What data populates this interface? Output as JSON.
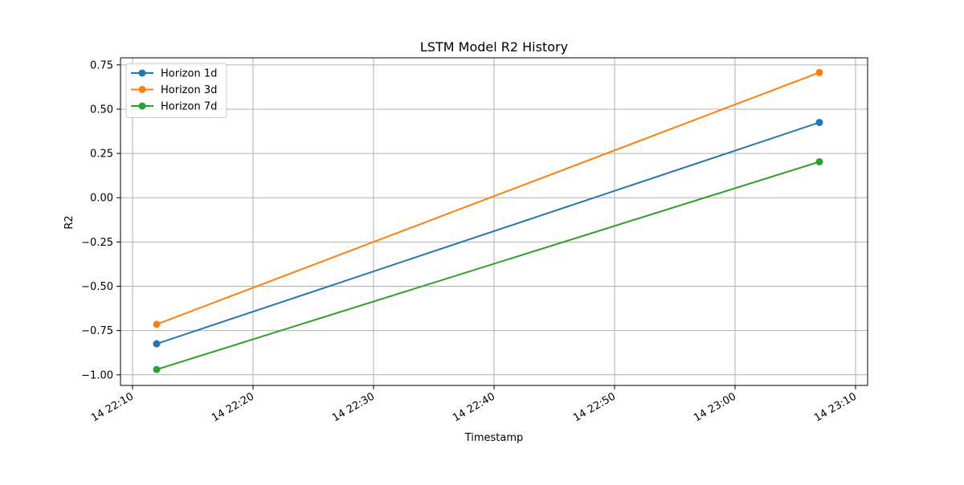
{
  "chart_data": {
    "type": "line",
    "title": "LSTM Model R2 History",
    "xlabel": "Timestamp",
    "ylabel": "R2",
    "x_ticks": [
      "14 22:10",
      "14 22:20",
      "14 22:30",
      "14 22:40",
      "14 22:50",
      "14 23:00",
      "14 23:10"
    ],
    "x": [
      "22:12",
      "23:07"
    ],
    "xlim": [
      "22:09",
      "23:11"
    ],
    "ylim": [
      -1.06,
      0.79
    ],
    "y_ticks": [
      -1.0,
      -0.75,
      -0.5,
      -0.25,
      0.0,
      0.25,
      0.5,
      0.75
    ],
    "y_tick_labels": [
      "−1.00",
      "−0.75",
      "−0.50",
      "−0.25",
      "0.00",
      "0.25",
      "0.50",
      "0.75"
    ],
    "grid": true,
    "legend_position": "top-left",
    "series": [
      {
        "name": "Horizon 1d",
        "color": "#1f77b4",
        "values": [
          -0.825,
          0.425
        ]
      },
      {
        "name": "Horizon 3d",
        "color": "#ff7f0e",
        "values": [
          -0.715,
          0.707
        ]
      },
      {
        "name": "Horizon 7d",
        "color": "#2ca02c",
        "values": [
          -0.97,
          0.203
        ]
      }
    ]
  }
}
